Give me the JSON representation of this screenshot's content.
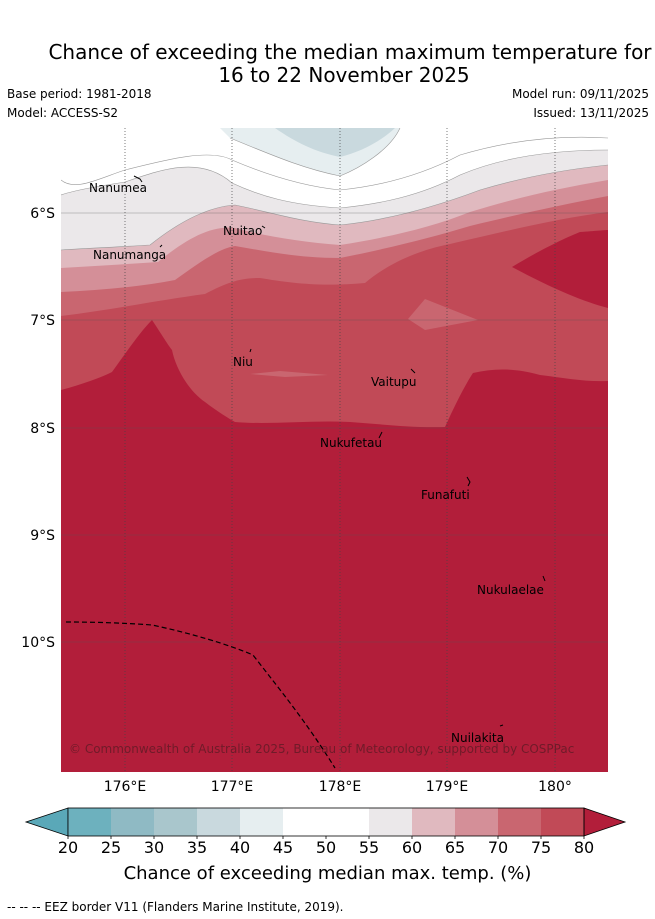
{
  "title_line1": "Chance of exceeding the median maximum temperature for",
  "title_line2": "16 to 22 November 2025",
  "base_period": "Base period: 1981-2018",
  "model": "Model: ACCESS-S2",
  "model_run": "Model run: 09/11/2025",
  "issued": "Issued: 13/11/2025",
  "places": {
    "nanumea": "Nanumea",
    "nanumanga": "Nanumanga",
    "nuitao": "Nuitao",
    "niu": "Niu",
    "vaitupu": "Vaitupu",
    "nukufetau": "Nukufetau",
    "funafuti": "Funafuti",
    "nukulaelae": "Nukulaelae",
    "nuilakita": "Nuilakita"
  },
  "lat_ticks": [
    "6°S",
    "7°S",
    "8°S",
    "9°S",
    "10°S"
  ],
  "lon_ticks": [
    "176°E",
    "177°E",
    "178°E",
    "179°E",
    "180°"
  ],
  "copyright": "© Commonwealth of Australia 2025, Bureau of Meteorology, supported by COSPPac",
  "colorbar": {
    "title": "Chance of exceeding median max. temp. (%)",
    "ticks": [
      "20",
      "25",
      "30",
      "35",
      "40",
      "45",
      "50",
      "55",
      "60",
      "65",
      "70",
      "75",
      "80"
    ],
    "colors": [
      "#5aa8b8",
      "#6db1be",
      "#8fbac4",
      "#a9c6cc",
      "#c9d9de",
      "#e6eef0",
      "#ffffff",
      "#ffffff",
      "#ebe8ea",
      "#e0b9bf",
      "#d48f98",
      "#c96670",
      "#c14a57",
      "#b21e3a"
    ]
  },
  "footer": "--  --  -- EEZ border V11 (Flanders Marine Institute, 2019)."
}
